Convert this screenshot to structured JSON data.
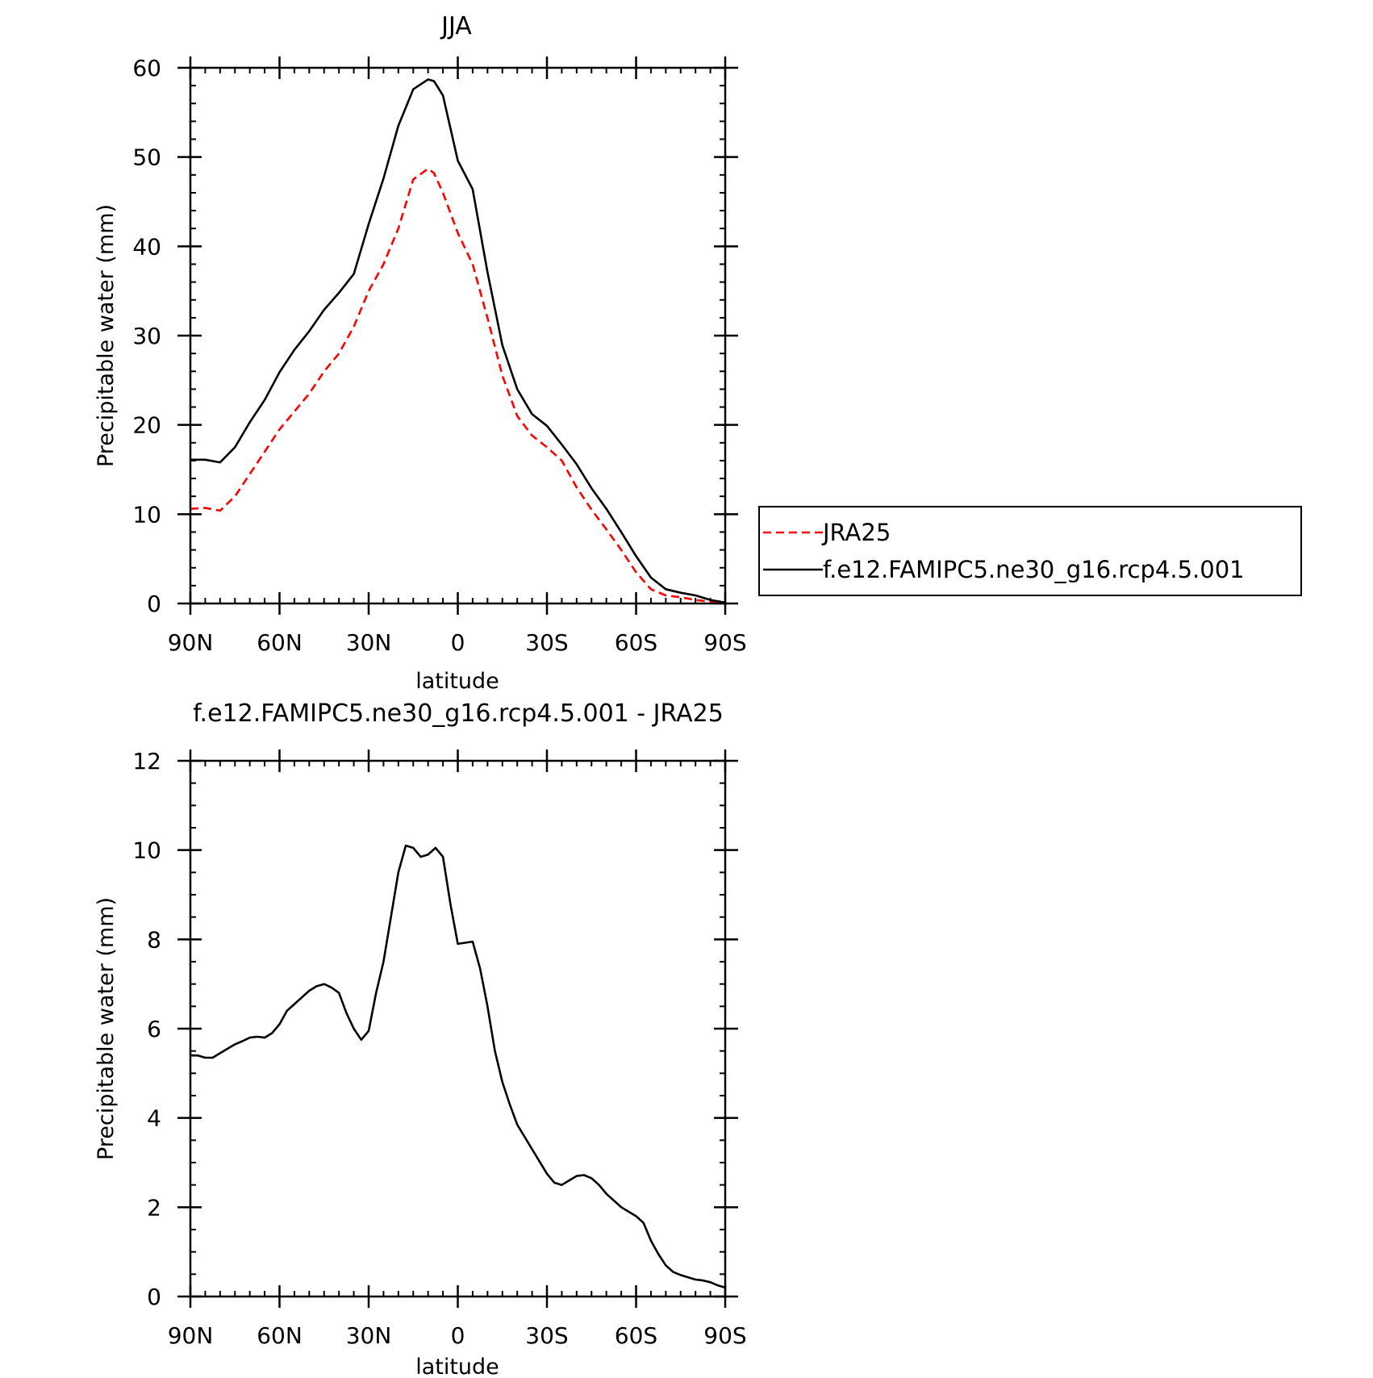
{
  "chart_data": [
    {
      "type": "line",
      "title": "JJA",
      "xlabel": "latitude",
      "ylabel": "Precipitable water (mm)",
      "xlim": [
        90,
        -90
      ],
      "ylim": [
        0,
        60
      ],
      "x_ticks": [
        90,
        60,
        30,
        0,
        -30,
        -60,
        -90
      ],
      "x_tick_labels": [
        "90N",
        "60N",
        "30N",
        "0",
        "30S",
        "60S",
        "90S"
      ],
      "y_ticks": [
        0,
        10,
        20,
        30,
        40,
        50,
        60
      ],
      "y_tick_labels": [
        "0",
        "10",
        "20",
        "30",
        "40",
        "50",
        "60"
      ],
      "legend_position": "outside-right",
      "series": [
        {
          "name": "JRA25",
          "color": "#ff0000",
          "dash": "dashed",
          "x": [
            90,
            85,
            80,
            75,
            70,
            65,
            60,
            55,
            50,
            45,
            40,
            35,
            30,
            25,
            20,
            15,
            10,
            8,
            5,
            0,
            -5,
            -10,
            -15,
            -20,
            -25,
            -30,
            -35,
            -40,
            -45,
            -50,
            -55,
            -60,
            -65,
            -70,
            -75,
            -80,
            -85,
            -90
          ],
          "values": [
            10.6,
            10.7,
            10.4,
            12,
            14.5,
            17,
            19.5,
            21.5,
            23.5,
            26,
            28,
            31,
            35,
            38,
            42,
            47.5,
            48.7,
            48.2,
            46,
            41.5,
            38,
            32,
            25.5,
            21,
            18.8,
            17.5,
            16,
            13,
            10.5,
            8.3,
            6,
            3.5,
            1.6,
            0.9,
            0.7,
            0.4,
            0.2,
            0.1
          ]
        },
        {
          "name": "f.e12.FAMIPC5.ne30_g16.rcp4.5.001",
          "color": "#000000",
          "dash": "solid",
          "x": [
            90,
            85,
            80,
            75,
            70,
            65,
            60,
            55,
            50,
            45,
            40,
            35,
            30,
            25,
            20,
            15,
            10,
            8,
            5,
            0,
            -5,
            -10,
            -15,
            -20,
            -25,
            -30,
            -35,
            -40,
            -45,
            -50,
            -55,
            -60,
            -65,
            -70,
            -75,
            -80,
            -85,
            -90
          ],
          "values": [
            16.1,
            16.1,
            15.8,
            17.5,
            20.3,
            22.8,
            25.9,
            28.4,
            30.5,
            32.9,
            34.8,
            36.9,
            42.5,
            47.6,
            53.5,
            57.6,
            58.7,
            58.5,
            56.9,
            49.6,
            46.4,
            37.1,
            28.9,
            24,
            21.2,
            19.9,
            17.8,
            15.6,
            12.9,
            10.6,
            8,
            5.3,
            2.9,
            1.6,
            1.2,
            0.9,
            0.4,
            0.1
          ]
        }
      ]
    },
    {
      "type": "line",
      "title": "f.e12.FAMIPC5.ne30_g16.rcp4.5.001 - JRA25",
      "xlabel": "latitude",
      "ylabel": "Precipitable water (mm)",
      "xlim": [
        90,
        -90
      ],
      "ylim": [
        0,
        12
      ],
      "x_ticks": [
        90,
        60,
        30,
        0,
        -30,
        -60,
        -90
      ],
      "x_tick_labels": [
        "90N",
        "60N",
        "30N",
        "0",
        "30S",
        "60S",
        "90S"
      ],
      "y_ticks": [
        0,
        2,
        4,
        6,
        8,
        10,
        12
      ],
      "y_tick_labels": [
        "0",
        "2",
        "4",
        "6",
        "8",
        "10",
        "12"
      ],
      "series": [
        {
          "color": "#000000",
          "dash": "solid",
          "x": [
            90,
            87.5,
            85,
            82.5,
            80,
            77.5,
            75,
            72.5,
            70,
            67.5,
            65,
            62.5,
            60,
            57.5,
            55,
            52.5,
            50,
            47.5,
            45,
            42.5,
            40,
            37.5,
            35,
            32.5,
            30,
            27.5,
            25,
            22.5,
            20,
            17.5,
            15,
            12.5,
            10,
            7.5,
            5,
            2.5,
            0,
            -5,
            -7.5,
            -10,
            -12.5,
            -15,
            -17.5,
            -20,
            -25,
            -30,
            -32.5,
            -35,
            -37.5,
            -40,
            -42.5,
            -45,
            -47.5,
            -50,
            -52.5,
            -55,
            -57.5,
            -60,
            -62.5,
            -65,
            -67.5,
            -70,
            -72.5,
            -75,
            -77.5,
            -80,
            -82.5,
            -85,
            -87.5,
            -90
          ],
          "values": [
            5.4,
            5.4,
            5.35,
            5.35,
            5.45,
            5.55,
            5.65,
            5.72,
            5.8,
            5.82,
            5.8,
            5.9,
            6.1,
            6.4,
            6.55,
            6.7,
            6.85,
            6.95,
            7,
            6.92,
            6.8,
            6.35,
            6,
            5.75,
            5.95,
            6.8,
            7.5,
            8.5,
            9.5,
            10.1,
            10.05,
            9.85,
            9.9,
            10.05,
            9.85,
            8.8,
            7.9,
            7.95,
            7.35,
            6.5,
            5.5,
            4.8,
            4.3,
            3.85,
            3.3,
            2.75,
            2.55,
            2.5,
            2.6,
            2.7,
            2.72,
            2.65,
            2.5,
            2.3,
            2.15,
            2,
            1.9,
            1.8,
            1.65,
            1.25,
            0.95,
            0.7,
            0.55,
            0.48,
            0.43,
            0.38,
            0.36,
            0.32,
            0.25,
            0.2
          ]
        }
      ]
    }
  ]
}
